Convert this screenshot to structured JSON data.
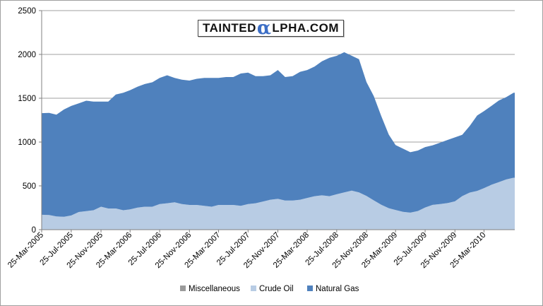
{
  "logo": {
    "pre": "TAINTED",
    "alpha": "α",
    "post": "LPHA.COM"
  },
  "chart_data": {
    "type": "area",
    "stacked": true,
    "title": "",
    "xlabel": "",
    "ylabel": "",
    "ylim": [
      0,
      2500
    ],
    "yticks": [
      0,
      500,
      1000,
      1500,
      2000,
      2500
    ],
    "grid": true,
    "legend_position": "bottom",
    "x_start": "2005-03-25",
    "x_end": "2010-07-30",
    "x_ticks": [
      "25-Mar-2005",
      "25-Jul-2005",
      "25-Nov-2005",
      "25-Mar-2006",
      "25-Jul-2006",
      "25-Nov-2006",
      "25-Mar-2007",
      "25-Jul-2007",
      "25-Nov-2007",
      "25-Mar-2008",
      "25-Jul-2008",
      "25-Nov-2008",
      "25-Mar-2009",
      "25-Jul-2009",
      "25-Nov-2009",
      "25-Mar-2010"
    ],
    "dates": [
      "2005-03-25",
      "2005-04-25",
      "2005-05-25",
      "2005-06-25",
      "2005-07-25",
      "2005-08-25",
      "2005-09-25",
      "2005-10-25",
      "2005-11-25",
      "2005-12-25",
      "2006-01-25",
      "2006-02-25",
      "2006-03-25",
      "2006-04-25",
      "2006-05-25",
      "2006-06-25",
      "2006-07-25",
      "2006-08-25",
      "2006-09-25",
      "2006-10-25",
      "2006-11-25",
      "2006-12-25",
      "2007-01-25",
      "2007-02-25",
      "2007-03-25",
      "2007-04-25",
      "2007-05-25",
      "2007-06-25",
      "2007-07-25",
      "2007-08-25",
      "2007-09-25",
      "2007-10-25",
      "2007-11-25",
      "2007-12-25",
      "2008-01-25",
      "2008-02-25",
      "2008-03-25",
      "2008-04-25",
      "2008-05-25",
      "2008-06-25",
      "2008-07-25",
      "2008-08-25",
      "2008-09-25",
      "2008-10-25",
      "2008-11-25",
      "2008-12-25",
      "2009-01-25",
      "2009-02-25",
      "2009-03-25",
      "2009-04-25",
      "2009-05-25",
      "2009-06-25",
      "2009-07-25",
      "2009-08-25",
      "2009-09-25",
      "2009-10-25",
      "2009-11-25",
      "2009-12-25",
      "2010-01-25",
      "2010-02-25",
      "2010-03-25",
      "2010-04-25",
      "2010-05-25",
      "2010-06-25",
      "2010-07-25"
    ],
    "series": [
      {
        "name": "Miscellaneous",
        "color": "#9a9a9a",
        "values": [
          2,
          2,
          2,
          2,
          2,
          2,
          2,
          2,
          2,
          2,
          2,
          2,
          2,
          2,
          2,
          2,
          2,
          2,
          2,
          2,
          2,
          2,
          2,
          2,
          2,
          2,
          2,
          2,
          2,
          2,
          2,
          2,
          2,
          2,
          2,
          2,
          2,
          2,
          2,
          2,
          4,
          5,
          5,
          5,
          5,
          5,
          5,
          5,
          5,
          4,
          4,
          3,
          3,
          3,
          3,
          3,
          3,
          3,
          3,
          3,
          3,
          3,
          3,
          3,
          3
        ]
      },
      {
        "name": "Crude Oil",
        "color": "#b8cce4",
        "values": [
          168,
          165,
          150,
          145,
          160,
          200,
          210,
          220,
          260,
          240,
          240,
          220,
          230,
          250,
          260,
          260,
          290,
          300,
          310,
          290,
          280,
          280,
          270,
          260,
          280,
          280,
          280,
          270,
          290,
          300,
          320,
          340,
          350,
          330,
          330,
          340,
          360,
          380,
          390,
          380,
          400,
          420,
          440,
          420,
          380,
          330,
          280,
          240,
          220,
          200,
          190,
          210,
          250,
          280,
          290,
          300,
          320,
          380,
          420,
          440,
          470,
          510,
          540,
          570,
          590
        ]
      },
      {
        "name": "Natural Gas",
        "color": "#4f81bd",
        "values": [
          1160,
          1165,
          1160,
          1225,
          1250,
          1240,
          1260,
          1240,
          1200,
          1220,
          1300,
          1340,
          1360,
          1380,
          1400,
          1420,
          1440,
          1460,
          1420,
          1420,
          1420,
          1440,
          1460,
          1470,
          1450,
          1460,
          1460,
          1510,
          1500,
          1450,
          1430,
          1420,
          1470,
          1410,
          1420,
          1460,
          1460,
          1480,
          1530,
          1580,
          1580,
          1600,
          1540,
          1520,
          1300,
          1190,
          1010,
          840,
          740,
          720,
          690,
          690,
          690,
          680,
          700,
          720,
          730,
          700,
          760,
          860,
          880,
          900,
          930,
          940,
          970
        ]
      }
    ],
    "colors": {
      "grid": "#a0a0a0",
      "axis": "#808080"
    }
  }
}
